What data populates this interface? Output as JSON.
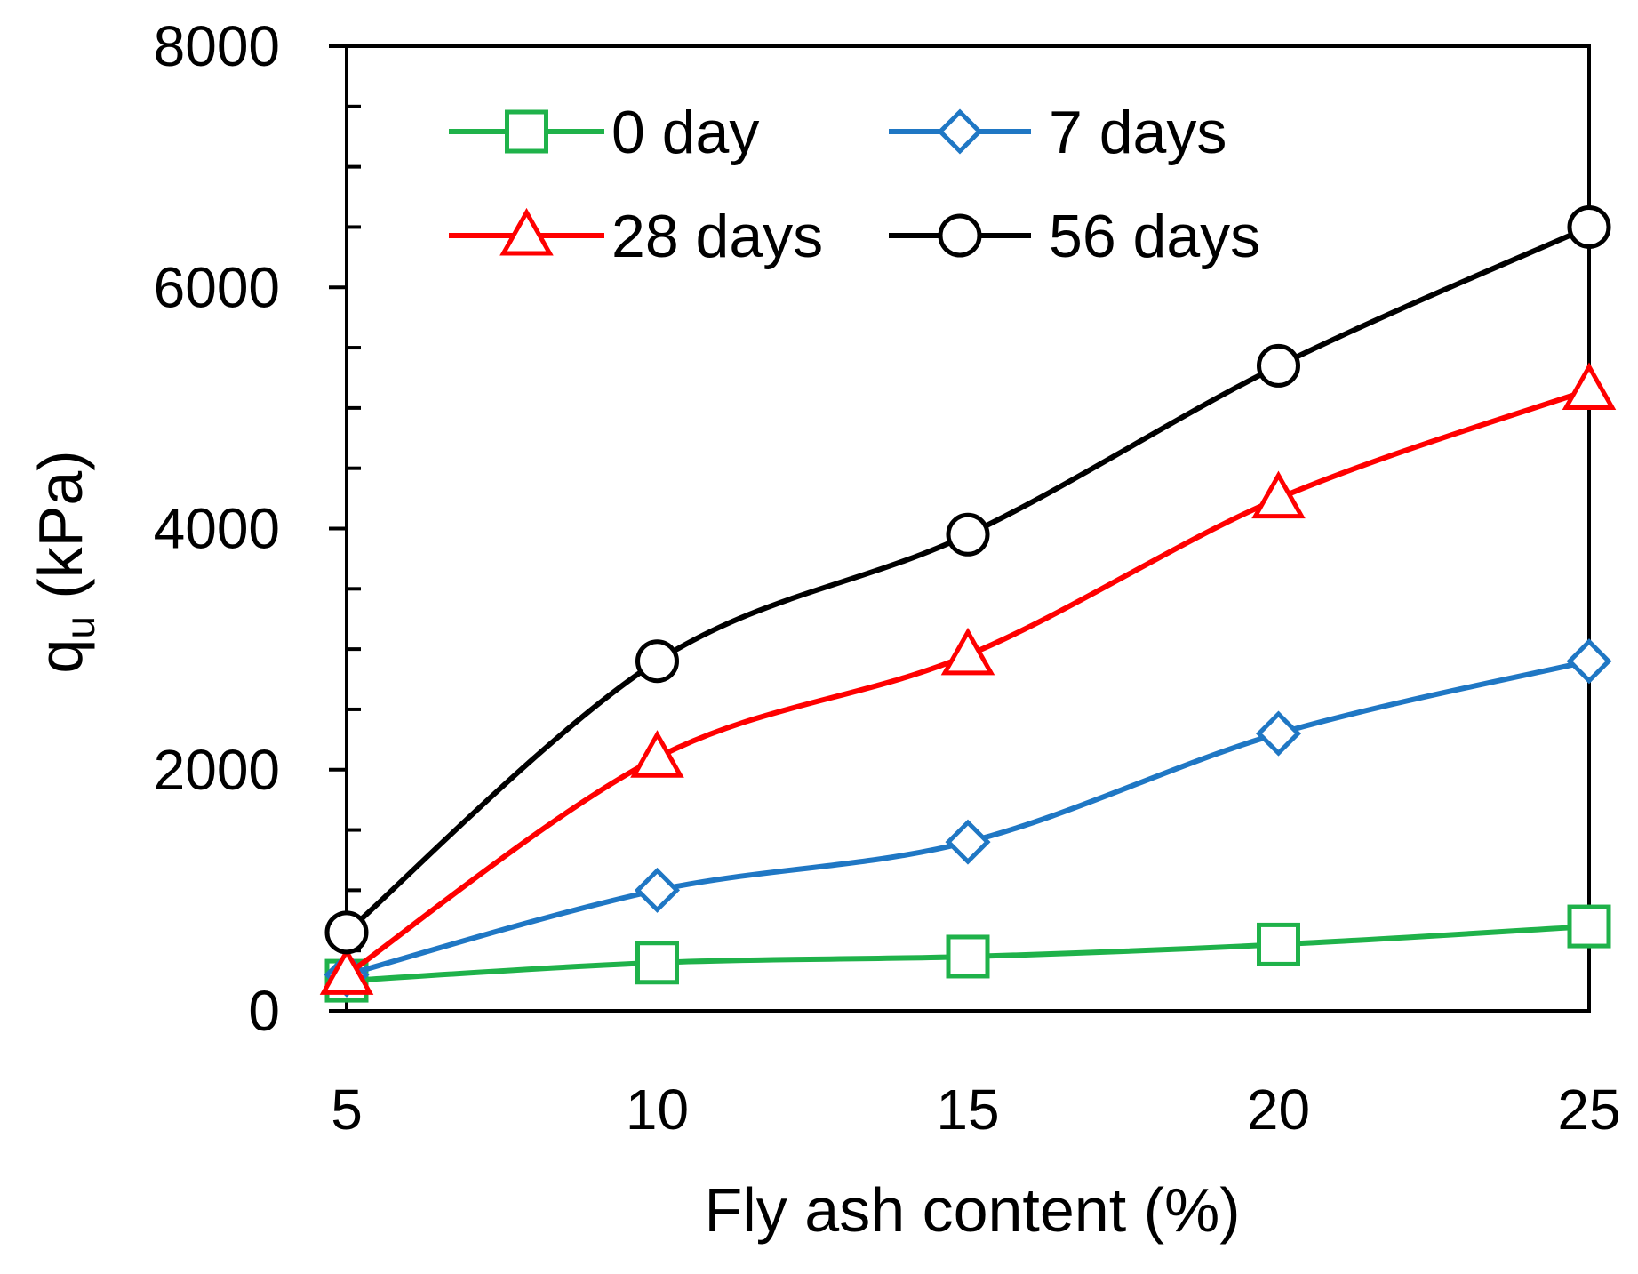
{
  "chart_data": {
    "type": "line",
    "title": "",
    "xlabel": "Fly ash content (%)",
    "ylabel_main": "q",
    "ylabel_sub": "u",
    "ylabel_unit": " (kPa)",
    "x": [
      5,
      10,
      15,
      20,
      25
    ],
    "xlim": [
      5,
      25
    ],
    "ylim": [
      0,
      8000
    ],
    "x_ticks": [
      "5",
      "10",
      "15",
      "20",
      "25"
    ],
    "y_ticks": [
      "0",
      "2000",
      "4000",
      "6000",
      "8000"
    ],
    "grid": false,
    "legend_position": "top-left",
    "series": [
      {
        "name": "0 day",
        "color": "#1FB24A",
        "marker": "square",
        "values": [
          250,
          400,
          450,
          550,
          700
        ]
      },
      {
        "name": "7 days",
        "color": "#1F77C4",
        "marker": "diamond",
        "values": [
          300,
          1000,
          1400,
          2300,
          2900
        ]
      },
      {
        "name": "28 days",
        "color": "#FF0000",
        "marker": "triangle",
        "values": [
          300,
          2100,
          2950,
          4250,
          5150
        ]
      },
      {
        "name": "56 days",
        "color": "#000000",
        "marker": "circle",
        "values": [
          650,
          2900,
          3950,
          5350,
          6500
        ]
      }
    ]
  }
}
